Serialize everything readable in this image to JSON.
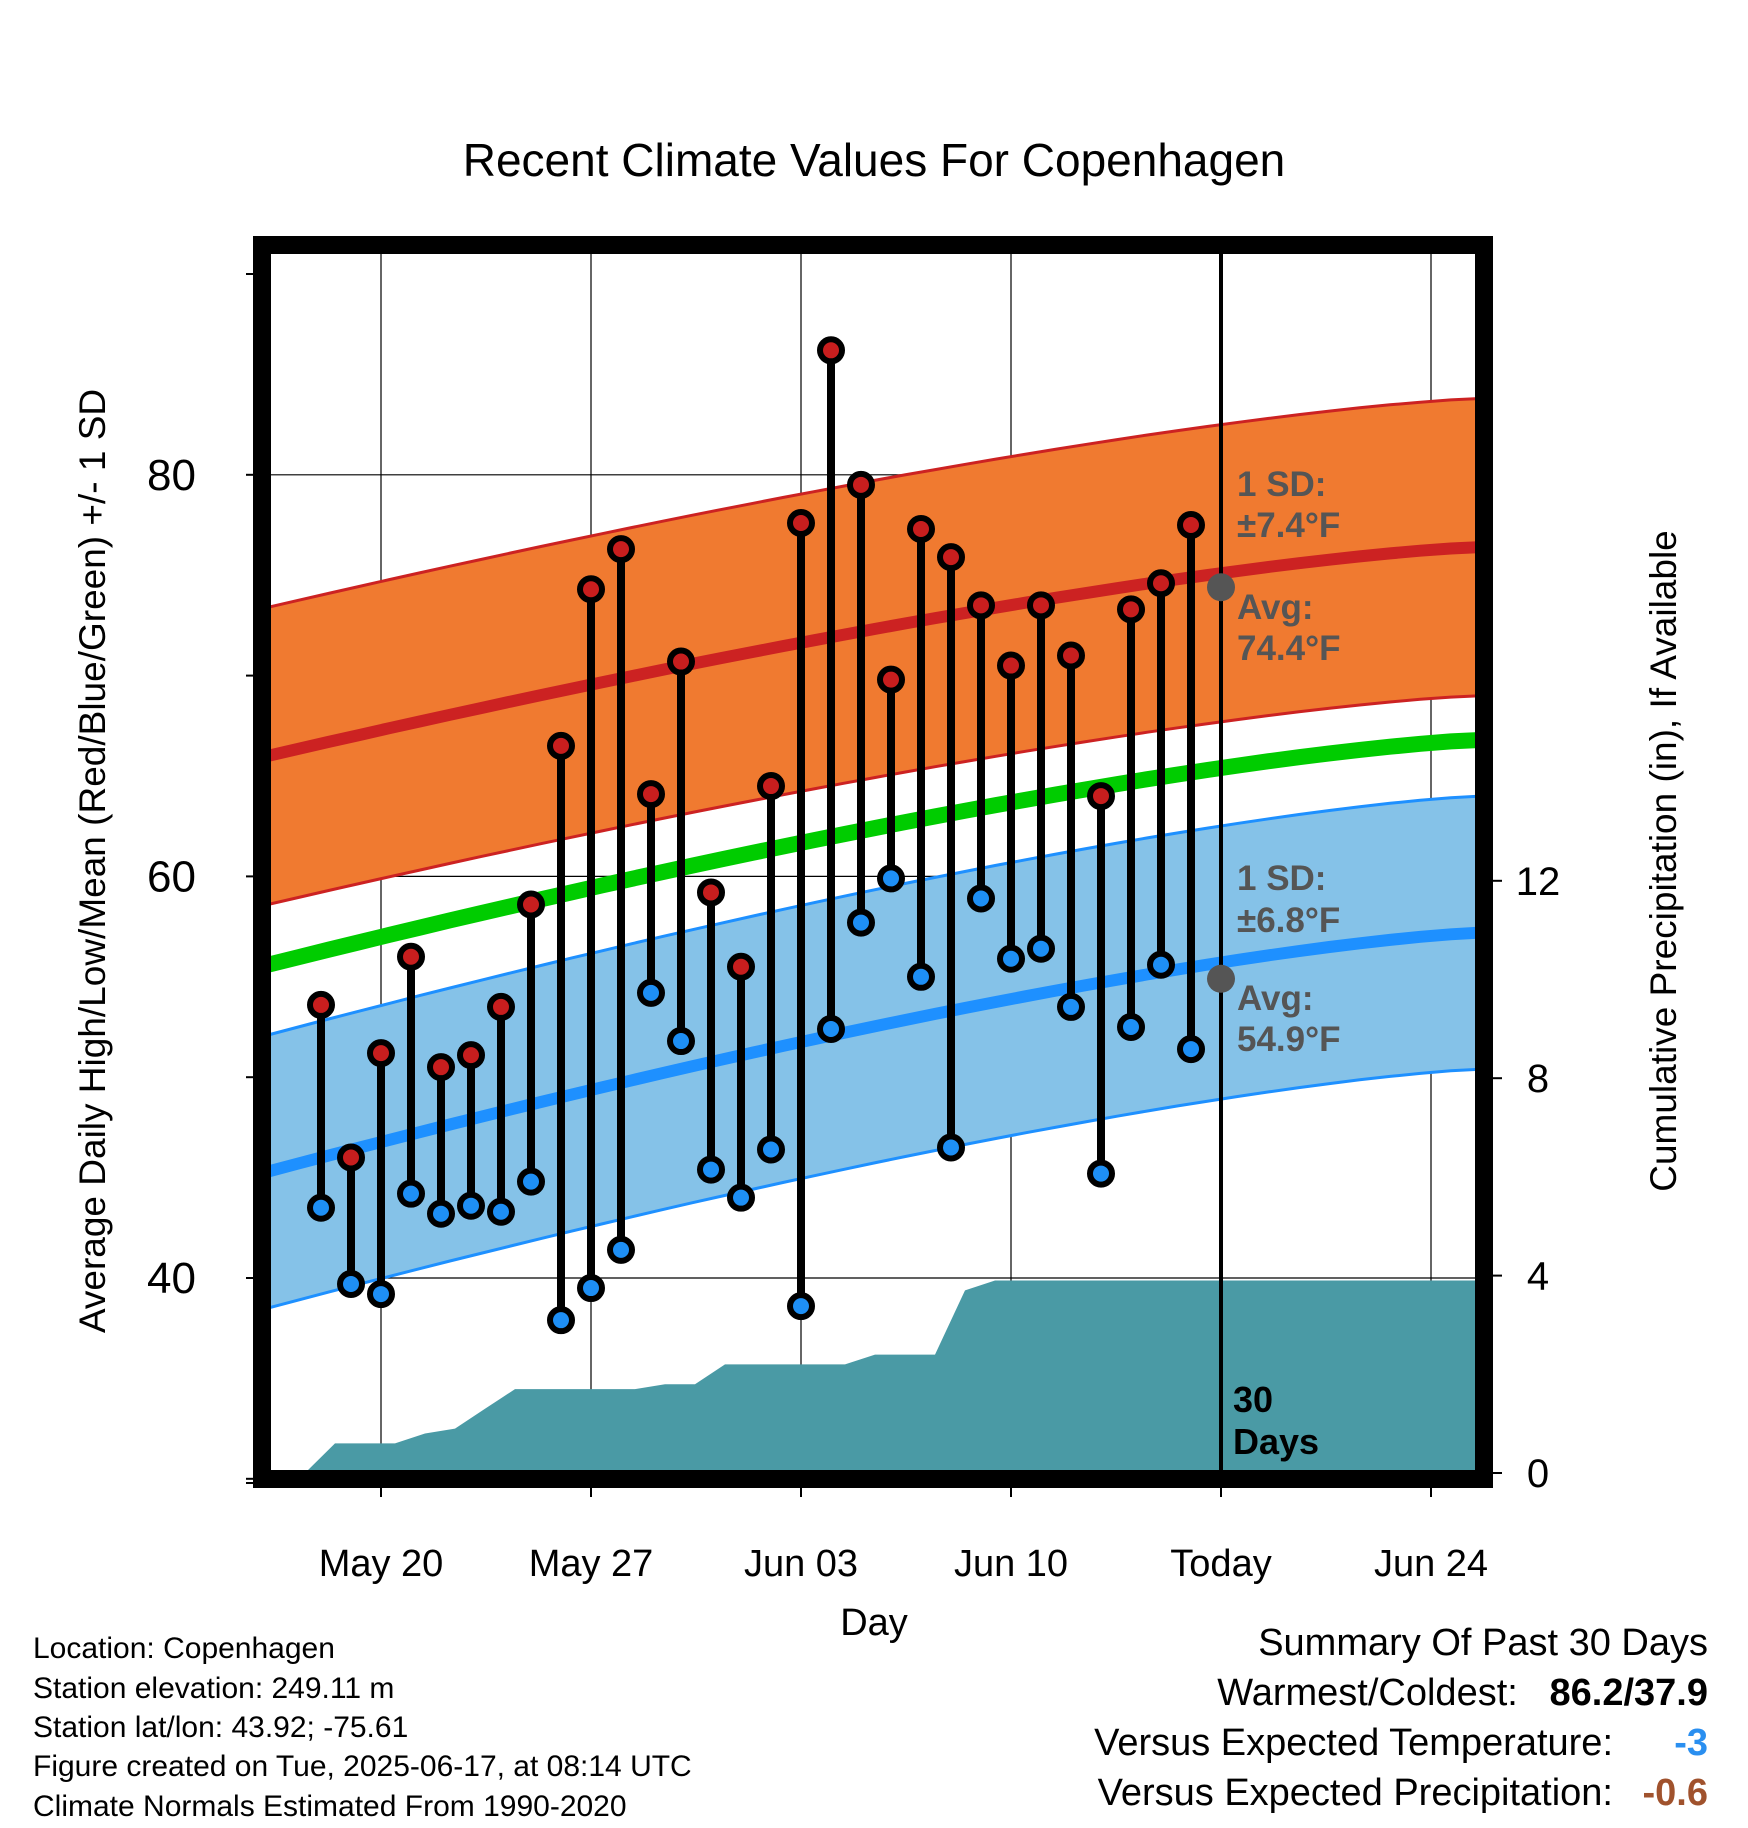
{
  "chart_data": {
    "type": "line",
    "title": "Recent Climate Values For Copenhagen",
    "xlabel": "Day",
    "ylabel": "Average Daily High/Low/Mean (Red/Blue/Green) +/- 1 SD",
    "y2label": "Cumulative Precipitation (in), If Available",
    "x_tick_labels": [
      "May 20",
      "May 27",
      "Jun 03",
      "Jun 10",
      "Today",
      "Jun 24"
    ],
    "y_ticks": [
      "40",
      "60",
      "80"
    ],
    "y2_ticks": [
      "0",
      "4",
      "8",
      "12"
    ],
    "ylim": [
      29.5,
      91.5
    ],
    "y2lim": [
      0,
      24.7
    ],
    "grid": true,
    "dates": [
      "May 18",
      "May 19",
      "May 20",
      "May 21",
      "May 22",
      "May 23",
      "May 24",
      "May 25",
      "May 26",
      "May 27",
      "May 28",
      "May 29",
      "May 30",
      "May 31",
      "Jun 01",
      "Jun 02",
      "Jun 03",
      "Jun 04",
      "Jun 05",
      "Jun 06",
      "Jun 07",
      "Jun 08",
      "Jun 09",
      "Jun 10",
      "Jun 11",
      "Jun 12",
      "Jun 13",
      "Jun 14",
      "Jun 15",
      "Jun 16"
    ],
    "highs": [
      53.6,
      46.0,
      51.2,
      56.0,
      50.5,
      51.1,
      53.5,
      58.6,
      66.5,
      74.3,
      76.3,
      64.1,
      70.7,
      59.2,
      55.5,
      64.5,
      77.6,
      86.2,
      79.5,
      69.8,
      77.3,
      75.9,
      73.5,
      70.5,
      73.5,
      71.0,
      64.0,
      73.3,
      74.6,
      77.5
    ],
    "lows": [
      43.5,
      39.7,
      39.2,
      44.2,
      43.2,
      43.6,
      43.3,
      44.8,
      37.9,
      39.5,
      41.4,
      54.2,
      51.8,
      45.4,
      44.0,
      46.4,
      38.6,
      52.4,
      57.7,
      59.9,
      55.0,
      46.5,
      58.9,
      55.9,
      56.4,
      53.5,
      45.2,
      52.5,
      55.6,
      51.4
    ],
    "normals_range": [
      "May 17",
      "Jun 27"
    ],
    "normal_high": [
      66.0,
      76.4
    ],
    "normal_high_sd": 7.4,
    "normal_low": [
      45.3,
      57.2
    ],
    "normal_low_sd": 6.8,
    "normal_mean": [
      55.6,
      66.8
    ],
    "precip_cumulative": [
      0,
      0.6,
      0.6,
      0.6,
      0.8,
      0.9,
      1.3,
      1.7,
      1.7,
      1.7,
      1.7,
      1.7,
      1.8,
      1.8,
      2.2,
      2.2,
      2.2,
      2.2,
      2.2,
      2.4,
      2.4,
      2.4,
      3.7,
      3.9,
      3.9,
      3.9,
      3.9,
      3.9,
      3.9,
      3.9
    ],
    "precip_after_today": 3.9,
    "annotations": {
      "high_sd_label": "1 SD:",
      "high_sd_value": "±7.4°F",
      "high_avg_label": "Avg:",
      "high_avg_value": "74.4°F",
      "low_sd_label": "1 SD:",
      "low_sd_value": "±6.8°F",
      "low_avg_label": "Avg:",
      "low_avg_value": "54.9°F",
      "today_high_avg": 74.4,
      "today_low_avg": 54.9,
      "period_line1": "30",
      "period_line2": "Days"
    },
    "colors": {
      "high_band": "#f07a30",
      "high_line": "#cc2222",
      "low_band": "#85c2e8",
      "low_line": "#1e90ff",
      "mean_line": "#00cc00",
      "precip": "#4a9aa5",
      "high_dot": "#c81e1e",
      "low_dot": "#1e8ff5"
    }
  },
  "info": {
    "location": "Location: Copenhagen",
    "elevation": "Station elevation: 249.11 m",
    "latlon": "Station lat/lon: 43.92; -75.61",
    "created": "Figure created on Tue, 2025-06-17, at 08:14 UTC",
    "normals": "Climate Normals Estimated From 1990-2020"
  },
  "summary": {
    "title": "Summary Of Past 30 Days",
    "warm_cold_label": "Warmest/Coldest:",
    "warm_cold_value": "86.2/37.9",
    "temp_label": "Versus Expected Temperature:",
    "temp_value": "-3",
    "temp_color": "#2a8ff0",
    "precip_label": "Versus Expected Precipitation:",
    "precip_value": "-0.6",
    "precip_color": "#a0522d"
  }
}
